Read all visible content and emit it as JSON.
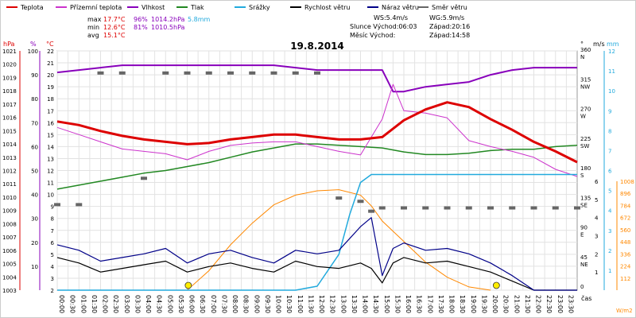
{
  "chart_data": {
    "type": "line",
    "title": "19.8.2014",
    "legend": [
      {
        "label": "Teplota",
        "color": "#dd0000"
      },
      {
        "label": "Přízemní teplota",
        "color": "#cc33cc"
      },
      {
        "label": "Vlhkost",
        "color": "#8800bb"
      },
      {
        "label": "Tlak",
        "color": "#228822"
      },
      {
        "label": "Srážky",
        "color": "#22aadd"
      },
      {
        "label": "Rychlost větru",
        "color": "#000000"
      },
      {
        "label": "Náraz větru",
        "color": "#000088"
      },
      {
        "label": "Směr větru",
        "color": "#666666"
      }
    ],
    "stats": {
      "max_label": "max",
      "max_temp": "17.7°C",
      "max_hum": "96%",
      "max_press": "1014.2hPa",
      "max_rain": "5.8mm",
      "min_label": "min",
      "min_temp": "12.6°C",
      "min_hum": "81%",
      "min_press": "1010.5hPa",
      "avg_label": "avg",
      "avg_temp": "15.1°C"
    },
    "info": {
      "ws": "WS:5.4m/s",
      "wg": "WG:5.9m/s",
      "sun": "Slunce Východ:06:03",
      "sunset": "Západ:20:16",
      "moon": "Měsíc  Východ:",
      "moonset": "Západ:14:58"
    },
    "axis_units": {
      "hpa": "hPa",
      "pct": "%",
      "degc": "°C",
      "deg": "°",
      "ms": "m/s",
      "mm": "mm",
      "wm2": "W/m2",
      "time": "čas"
    },
    "axes": {
      "pressure": {
        "range": [
          1003,
          1021
        ],
        "ticks": [
          "1003",
          "1004",
          "1005",
          "1006",
          "1007",
          "1008",
          "1009",
          "1010",
          "1011",
          "1012",
          "1013",
          "1014",
          "1015",
          "1016",
          "1017",
          "1018",
          "1019",
          "1020",
          "1021"
        ]
      },
      "humidity": {
        "range": [
          0,
          100
        ],
        "ticks": [
          "10",
          "20",
          "30",
          "40",
          "50",
          "60",
          "70",
          "80",
          "90",
          "100"
        ]
      },
      "temperature": {
        "range": [
          2,
          22
        ],
        "ticks": [
          "2",
          "3",
          "4",
          "5",
          "6",
          "7",
          "8",
          "9",
          "10",
          "11",
          "12",
          "13",
          "14",
          "15",
          "16",
          "17",
          "18",
          "19",
          "20",
          "21",
          "22"
        ]
      },
      "direction": {
        "ticks": [
          {
            "v": "360",
            "d": "N"
          },
          {
            "v": "315",
            "d": "NW"
          },
          {
            "v": "270",
            "d": "W"
          },
          {
            "v": "225",
            "d": "SW"
          },
          {
            "v": "180",
            "d": "S"
          },
          {
            "v": "135",
            "d": "SE"
          },
          {
            "v": "90",
            "d": "E"
          },
          {
            "v": "45",
            "d": "NE"
          },
          {
            "v": "0",
            "d": ""
          }
        ]
      },
      "wind": {
        "range": [
          0,
          6
        ],
        "ticks": [
          "1",
          "2",
          "3",
          "4",
          "5",
          "6"
        ]
      },
      "rain": {
        "range": [
          0,
          12
        ],
        "ticks": [
          "1",
          "2",
          "3",
          "4",
          "5",
          "6",
          "7",
          "8",
          "9",
          "10",
          "11",
          "12"
        ]
      },
      "radiation": {
        "range": [
          0,
          1008
        ],
        "ticks": [
          "112",
          "224",
          "336",
          "448",
          "560",
          "672",
          "784",
          "896",
          "1008"
        ]
      }
    },
    "time_labels": [
      "00:00",
      "00:30",
      "01:00",
      "01:30",
      "02:00",
      "02:30",
      "03:00",
      "03:30",
      "04:00",
      "04:30",
      "05:00",
      "05:30",
      "06:00",
      "06:30",
      "07:00",
      "07:30",
      "08:00",
      "08:30",
      "09:00",
      "09:30",
      "10:00",
      "10:30",
      "11:00",
      "11:30",
      "12:00",
      "12:30",
      "13:00",
      "13:30",
      "14:00",
      "14:30",
      "15:00",
      "15:30",
      "16:00",
      "16:30",
      "17:00",
      "17:30",
      "18:00",
      "18:30",
      "19:00",
      "19:30",
      "20:00",
      "20:30",
      "21:00",
      "21:30",
      "22:00",
      "22:30",
      "23:00",
      "23:30"
    ],
    "series": [
      {
        "name": "Teplota",
        "axis": "temperature",
        "color": "#dd0000",
        "width": 3,
        "x": [
          0,
          1,
          2,
          3,
          4,
          5,
          6,
          7,
          8,
          9,
          10,
          11,
          12,
          13,
          14,
          15,
          16,
          17,
          18,
          19,
          20,
          21,
          22,
          23,
          24
        ],
        "values": [
          16.1,
          15.8,
          15.3,
          14.9,
          14.6,
          14.4,
          14.2,
          14.3,
          14.6,
          14.8,
          15.0,
          15.0,
          14.8,
          14.6,
          14.6,
          14.8,
          16.2,
          17.1,
          17.7,
          17.3,
          16.3,
          15.4,
          14.4,
          13.6,
          12.7
        ]
      },
      {
        "name": "Přízemní teplota",
        "axis": "temperature",
        "color": "#cc33cc",
        "width": 1,
        "x": [
          0,
          1,
          2,
          3,
          4,
          5,
          6,
          7,
          8,
          9,
          10,
          11,
          12,
          13,
          14,
          15,
          15.5,
          16,
          17,
          18,
          19,
          20,
          21,
          22,
          23,
          24
        ],
        "values": [
          15.6,
          15.0,
          14.4,
          13.8,
          13.6,
          13.4,
          12.9,
          13.6,
          14.1,
          14.3,
          14.4,
          14.4,
          14.0,
          13.6,
          13.3,
          16.3,
          19.2,
          17.0,
          16.8,
          16.4,
          14.5,
          14.0,
          13.6,
          13.1,
          12.1,
          11.5
        ]
      },
      {
        "name": "Vlhkost",
        "axis": "humidity",
        "color": "#8800bb",
        "width": 2,
        "x": [
          0,
          1,
          2,
          3,
          4,
          5,
          6,
          7,
          8,
          9,
          10,
          11,
          12,
          13,
          14,
          15,
          15.5,
          16,
          17,
          18,
          19,
          20,
          21,
          22,
          23,
          24
        ],
        "values": [
          91,
          92,
          93,
          94,
          94,
          94,
          94,
          94,
          94,
          94,
          94,
          93,
          92,
          92,
          92,
          92,
          83,
          83,
          85,
          86,
          87,
          90,
          92,
          93,
          93,
          93
        ]
      },
      {
        "name": "Tlak",
        "axis": "pressure",
        "color": "#228822",
        "width": 1.5,
        "x": [
          0,
          1,
          2,
          3,
          4,
          5,
          6,
          7,
          8,
          9,
          10,
          11,
          12,
          13,
          14,
          15,
          16,
          17,
          18,
          19,
          20,
          21,
          22,
          23,
          24
        ],
        "values": [
          1010.6,
          1010.9,
          1011.2,
          1011.5,
          1011.8,
          1012.0,
          1012.3,
          1012.6,
          1013.0,
          1013.4,
          1013.7,
          1014.0,
          1014.0,
          1013.9,
          1013.8,
          1013.7,
          1013.4,
          1013.2,
          1013.2,
          1013.3,
          1013.5,
          1013.6,
          1013.6,
          1013.8,
          1013.9
        ]
      },
      {
        "name": "Srážky",
        "axis": "rain",
        "color": "#22aadd",
        "width": 1.5,
        "x": [
          0,
          8,
          10,
          11,
          12,
          13,
          13.5,
          14,
          14.5,
          15,
          16,
          18,
          20,
          22,
          24
        ],
        "values": [
          0,
          0,
          0,
          0,
          0.2,
          1.8,
          3.8,
          5.4,
          5.8,
          5.8,
          5.8,
          5.8,
          5.8,
          5.8,
          5.8
        ]
      },
      {
        "name": "Rychlost větru",
        "axis": "wind",
        "color": "#000000",
        "width": 1.2,
        "x": [
          0,
          1,
          2,
          3,
          4,
          5,
          6,
          7,
          8,
          9,
          10,
          11,
          12,
          13,
          14,
          14.5,
          15,
          15.5,
          16,
          17,
          18,
          19,
          20,
          21,
          22,
          23,
          24
        ],
        "values": [
          1.8,
          1.5,
          1.0,
          1.2,
          1.4,
          1.6,
          1.0,
          1.3,
          1.5,
          1.2,
          1.0,
          1.6,
          1.3,
          1.2,
          1.5,
          1.2,
          0.4,
          1.5,
          1.8,
          1.5,
          1.6,
          1.3,
          1.0,
          0.5,
          0,
          0,
          0
        ]
      },
      {
        "name": "Náraz větru",
        "axis": "wind",
        "color": "#000088",
        "width": 1.2,
        "x": [
          0,
          1,
          2,
          3,
          4,
          5,
          6,
          7,
          8,
          9,
          10,
          11,
          12,
          13,
          14,
          14.5,
          15,
          15.5,
          16,
          17,
          18,
          19,
          20,
          21,
          22,
          23,
          24
        ],
        "values": [
          2.5,
          2.2,
          1.6,
          1.8,
          2.0,
          2.3,
          1.5,
          2.0,
          2.2,
          1.8,
          1.5,
          2.2,
          2.0,
          2.2,
          3.5,
          4.0,
          0.8,
          2.3,
          2.6,
          2.2,
          2.3,
          2.0,
          1.5,
          0.8,
          0,
          0,
          0
        ]
      },
      {
        "name": "Směr větru",
        "axis": "direction",
        "color": "#666666",
        "width": 3,
        "x": [
          0,
          1,
          2,
          3,
          4,
          5,
          6,
          7,
          8,
          9,
          10,
          11,
          12,
          13,
          14,
          14.5,
          15,
          16,
          17,
          18,
          19,
          20,
          21,
          22,
          23,
          24
        ],
        "values": [
          130,
          130,
          330,
          330,
          170,
          330,
          330,
          330,
          330,
          330,
          330,
          330,
          330,
          140,
          135,
          120,
          125,
          125,
          125,
          125,
          125,
          125,
          125,
          125,
          125,
          125
        ]
      },
      {
        "name": "Sluneční záření",
        "axis": "radiation",
        "color": "#ff8800",
        "width": 1,
        "x": [
          6,
          7,
          8,
          9,
          10,
          11,
          12,
          13,
          14,
          14.5,
          15,
          16,
          17,
          18,
          19,
          20
        ],
        "values": [
          0,
          180,
          420,
          620,
          790,
          880,
          920,
          930,
          880,
          780,
          640,
          450,
          260,
          120,
          30,
          0
        ]
      }
    ]
  }
}
